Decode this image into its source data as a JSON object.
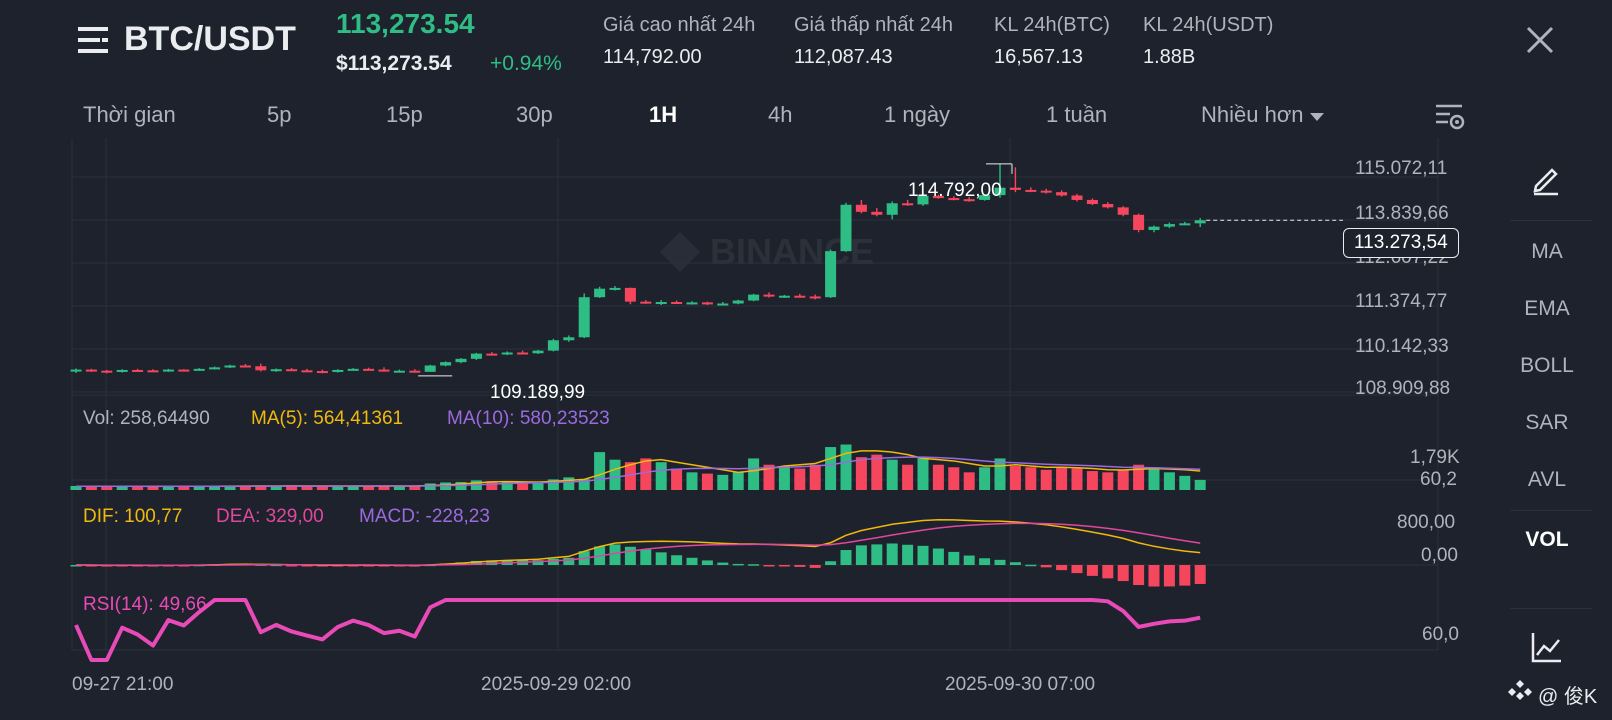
{
  "header": {
    "pair": "BTC/USDT",
    "last_price": "113,273.54",
    "usd_price": "$113,273.54",
    "change": "+0.94%",
    "stats": [
      {
        "label": "Giá cao nhất 24h",
        "value": "114,792.00"
      },
      {
        "label": "Giá thấp nhất 24h",
        "value": "112,087.43"
      },
      {
        "label": "KL 24h(BTC)",
        "value": "16,567.13"
      },
      {
        "label": "KL 24h(USDT)",
        "value": "1.88B"
      }
    ]
  },
  "timeframes": [
    "Thời gian",
    "5p",
    "15p",
    "30p",
    "1H",
    "4h",
    "1 ngày",
    "1 tuần",
    "Nhiều hơn"
  ],
  "active_timeframe": "1H",
  "sidebar": {
    "items": [
      "MA",
      "EMA",
      "BOLL",
      "SAR",
      "AVL",
      "VOL"
    ],
    "active": "VOL"
  },
  "price_axis": [
    "115.072,11",
    "113.839,66",
    "112.607,22",
    "111.374,77",
    "110.142,33",
    "108.909,88"
  ],
  "current_price_tag": "113.273,54",
  "high_marker": "114.792,00",
  "low_marker": "109.189,99",
  "watermark": "BINANCE",
  "volume": {
    "legend_vol": "Vol: 258,64490",
    "legend_ma5": "MA(5): 564,41361",
    "legend_ma10": "MA(10): 580,23523",
    "axis_top": "1,79K",
    "axis_low": "60,2"
  },
  "macd": {
    "legend_dif": "DIF: 100,77",
    "legend_dea": "DEA: 329,00",
    "legend_macd": "MACD: -228,23",
    "axis_top": "800,00",
    "axis_zero": "0,00"
  },
  "rsi": {
    "legend": "RSI(14): 49,66",
    "axis": "60,0"
  },
  "time_axis": [
    "09-27 21:00",
    "2025-09-29 02:00",
    "2025-09-30 07:00"
  ],
  "footer_tag": "@ 俊K",
  "colors": {
    "background": "#1e222d",
    "up": "#2ebd85",
    "down": "#f6465d",
    "ma5": "#f0b90b",
    "ma10": "#9c6ade",
    "dea": "#e0479e",
    "rsi": "#e84ab8"
  },
  "chart_data": {
    "type": "candlestick",
    "ylim": [
      108700,
      115300
    ],
    "candles": [
      {
        "o": 109230,
        "h": 109280,
        "l": 109160,
        "c": 109250
      },
      {
        "o": 109250,
        "h": 109270,
        "l": 109190,
        "c": 109220
      },
      {
        "o": 109220,
        "h": 109240,
        "l": 109150,
        "c": 109190
      },
      {
        "o": 109190,
        "h": 109260,
        "l": 109170,
        "c": 109240
      },
      {
        "o": 109240,
        "h": 109270,
        "l": 109200,
        "c": 109230
      },
      {
        "o": 109230,
        "h": 109260,
        "l": 109180,
        "c": 109210
      },
      {
        "o": 109210,
        "h": 109270,
        "l": 109190,
        "c": 109250
      },
      {
        "o": 109250,
        "h": 109260,
        "l": 109210,
        "c": 109240
      },
      {
        "o": 109240,
        "h": 109290,
        "l": 109220,
        "c": 109270
      },
      {
        "o": 109270,
        "h": 109330,
        "l": 109250,
        "c": 109310
      },
      {
        "o": 109310,
        "h": 109380,
        "l": 109290,
        "c": 109360
      },
      {
        "o": 109360,
        "h": 109400,
        "l": 109320,
        "c": 109340
      },
      {
        "o": 109340,
        "h": 109410,
        "l": 109200,
        "c": 109230
      },
      {
        "o": 109230,
        "h": 109280,
        "l": 109190,
        "c": 109260
      },
      {
        "o": 109260,
        "h": 109290,
        "l": 109210,
        "c": 109230
      },
      {
        "o": 109230,
        "h": 109270,
        "l": 109190,
        "c": 109210
      },
      {
        "o": 109210,
        "h": 109250,
        "l": 109150,
        "c": 109190
      },
      {
        "o": 109190,
        "h": 109260,
        "l": 109170,
        "c": 109240
      },
      {
        "o": 109240,
        "h": 109290,
        "l": 109220,
        "c": 109270
      },
      {
        "o": 109270,
        "h": 109300,
        "l": 109230,
        "c": 109250
      },
      {
        "o": 109250,
        "h": 109310,
        "l": 109190,
        "c": 109210
      },
      {
        "o": 109210,
        "h": 109250,
        "l": 109180,
        "c": 109220
      },
      {
        "o": 109220,
        "h": 109260,
        "l": 109170,
        "c": 109190
      },
      {
        "o": 109190,
        "h": 109380,
        "l": 109190,
        "c": 109360
      },
      {
        "o": 109360,
        "h": 109470,
        "l": 109340,
        "c": 109450
      },
      {
        "o": 109450,
        "h": 109560,
        "l": 109420,
        "c": 109540
      },
      {
        "o": 109540,
        "h": 109700,
        "l": 109510,
        "c": 109680
      },
      {
        "o": 109680,
        "h": 109720,
        "l": 109630,
        "c": 109660
      },
      {
        "o": 109660,
        "h": 109740,
        "l": 109640,
        "c": 109710
      },
      {
        "o": 109710,
        "h": 109760,
        "l": 109670,
        "c": 109690
      },
      {
        "o": 109690,
        "h": 109780,
        "l": 109670,
        "c": 109760
      },
      {
        "o": 109760,
        "h": 110080,
        "l": 109740,
        "c": 110040
      },
      {
        "o": 110040,
        "h": 110170,
        "l": 110000,
        "c": 110120
      },
      {
        "o": 110120,
        "h": 111300,
        "l": 110100,
        "c": 111200
      },
      {
        "o": 111200,
        "h": 111480,
        "l": 111180,
        "c": 111430
      },
      {
        "o": 111430,
        "h": 111500,
        "l": 111380,
        "c": 111450
      },
      {
        "o": 111450,
        "h": 111460,
        "l": 111010,
        "c": 111080
      },
      {
        "o": 111080,
        "h": 111120,
        "l": 111020,
        "c": 111060
      },
      {
        "o": 111060,
        "h": 111120,
        "l": 110990,
        "c": 111070
      },
      {
        "o": 111070,
        "h": 111110,
        "l": 111020,
        "c": 111040
      },
      {
        "o": 111040,
        "h": 111090,
        "l": 111000,
        "c": 111060
      },
      {
        "o": 111060,
        "h": 111080,
        "l": 110990,
        "c": 111010
      },
      {
        "o": 111010,
        "h": 111070,
        "l": 110980,
        "c": 111030
      },
      {
        "o": 111030,
        "h": 111130,
        "l": 111010,
        "c": 111110
      },
      {
        "o": 111110,
        "h": 111290,
        "l": 111090,
        "c": 111270
      },
      {
        "o": 111270,
        "h": 111330,
        "l": 111190,
        "c": 111230
      },
      {
        "o": 111230,
        "h": 111260,
        "l": 111180,
        "c": 111240
      },
      {
        "o": 111240,
        "h": 111290,
        "l": 111190,
        "c": 111220
      },
      {
        "o": 111220,
        "h": 111270,
        "l": 111140,
        "c": 111200
      },
      {
        "o": 111200,
        "h": 112480,
        "l": 111180,
        "c": 112440
      },
      {
        "o": 112440,
        "h": 113740,
        "l": 112420,
        "c": 113690
      },
      {
        "o": 113690,
        "h": 113820,
        "l": 113460,
        "c": 113500
      },
      {
        "o": 113500,
        "h": 113600,
        "l": 113380,
        "c": 113420
      },
      {
        "o": 113420,
        "h": 113780,
        "l": 113300,
        "c": 113730
      },
      {
        "o": 113730,
        "h": 113820,
        "l": 113660,
        "c": 113700
      },
      {
        "o": 113700,
        "h": 114020,
        "l": 113660,
        "c": 113930
      },
      {
        "o": 113930,
        "h": 113960,
        "l": 113850,
        "c": 113870
      },
      {
        "o": 113870,
        "h": 113920,
        "l": 113810,
        "c": 113840
      },
      {
        "o": 113840,
        "h": 113900,
        "l": 113770,
        "c": 113820
      },
      {
        "o": 113820,
        "h": 113980,
        "l": 113800,
        "c": 113950
      },
      {
        "o": 113950,
        "h": 114792,
        "l": 113880,
        "c": 114150
      },
      {
        "o": 114150,
        "h": 114700,
        "l": 114030,
        "c": 114090
      },
      {
        "o": 114090,
        "h": 114160,
        "l": 114030,
        "c": 114070
      },
      {
        "o": 114070,
        "h": 114120,
        "l": 113990,
        "c": 114030
      },
      {
        "o": 114030,
        "h": 114080,
        "l": 113910,
        "c": 113940
      },
      {
        "o": 113940,
        "h": 113980,
        "l": 113780,
        "c": 113820
      },
      {
        "o": 113820,
        "h": 113860,
        "l": 113680,
        "c": 113710
      },
      {
        "o": 113710,
        "h": 113760,
        "l": 113590,
        "c": 113620
      },
      {
        "o": 113620,
        "h": 113650,
        "l": 113380,
        "c": 113420
      },
      {
        "o": 113420,
        "h": 113450,
        "l": 112950,
        "c": 113010
      },
      {
        "o": 113010,
        "h": 113130,
        "l": 112950,
        "c": 113100
      },
      {
        "o": 113100,
        "h": 113210,
        "l": 113060,
        "c": 113170
      },
      {
        "o": 113170,
        "h": 113230,
        "l": 113140,
        "c": 113190
      },
      {
        "o": 113190,
        "h": 113330,
        "l": 113090,
        "c": 113273
      }
    ],
    "volume": [
      160,
      150,
      140,
      155,
      150,
      145,
      140,
      135,
      150,
      160,
      155,
      170,
      180,
      160,
      150,
      145,
      150,
      160,
      155,
      150,
      165,
      170,
      175,
      260,
      300,
      320,
      380,
      350,
      300,
      260,
      280,
      420,
      500,
      430,
      1500,
      1200,
      1100,
      1250,
      1100,
      850,
      700,
      650,
      600,
      720,
      1250,
      1000,
      900,
      850,
      1000,
      1700,
      1800,
      1300,
      1400,
      1200,
      1000,
      1300,
      1000,
      900,
      700,
      900,
      1250,
      950,
      900,
      800,
      900,
      850,
      750,
      700,
      800,
      1000,
      900,
      700,
      560,
      400
    ],
    "vol_ma5": [
      150,
      150,
      148,
      147,
      146,
      145,
      146,
      147,
      148,
      150,
      152,
      155,
      158,
      160,
      162,
      160,
      158,
      157,
      156,
      155,
      156,
      158,
      160,
      180,
      200,
      240,
      280,
      320,
      330,
      320,
      310,
      340,
      380,
      420,
      600,
      820,
      1000,
      1150,
      1200,
      1100,
      1000,
      900,
      800,
      700,
      760,
      850,
      950,
      1000,
      1050,
      1250,
      1450,
      1550,
      1550,
      1500,
      1400,
      1250,
      1200,
      1150,
      1050,
      950,
      950,
      1000,
      950,
      900,
      900,
      880,
      850,
      800,
      790,
      820,
      850,
      830,
      800,
      750
    ],
    "vol_ma10": [
      150,
      150,
      150,
      149,
      149,
      148,
      148,
      148,
      148,
      149,
      150,
      151,
      152,
      153,
      154,
      155,
      155,
      155,
      156,
      156,
      156,
      157,
      158,
      165,
      175,
      190,
      210,
      235,
      255,
      270,
      285,
      300,
      320,
      340,
      420,
      500,
      600,
      700,
      780,
      820,
      850,
      860,
      850,
      840,
      860,
      880,
      900,
      920,
      950,
      1000,
      1100,
      1200,
      1250,
      1280,
      1300,
      1300,
      1280,
      1250,
      1200,
      1150,
      1100,
      1080,
      1050,
      1020,
      1000,
      980,
      960,
      930,
      900,
      890,
      880,
      860,
      840,
      820
    ]
  }
}
